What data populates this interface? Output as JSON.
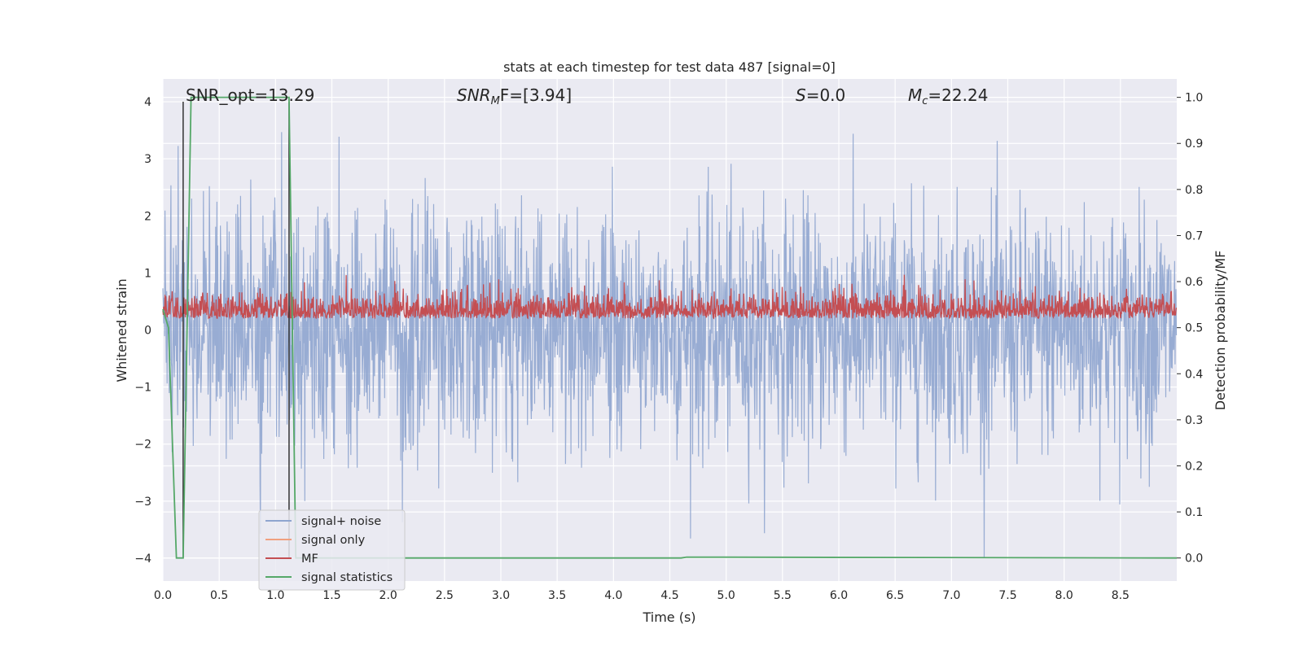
{
  "chart_data": {
    "type": "line",
    "title": "stats at each timestep for test data 487 [signal=0]",
    "xlabel": "Time (s)",
    "ylabel": "Whitened strain",
    "ylabel_right": "Detection probability/MF",
    "xlim": [
      0.0,
      9.0
    ],
    "ylim": [
      -4.4,
      4.4
    ],
    "ylim_right": [
      -0.05,
      1.04
    ],
    "x_ticks": [
      "0.0",
      "0.5",
      "1.0",
      "1.5",
      "2.0",
      "2.5",
      "3.0",
      "3.5",
      "4.0",
      "4.5",
      "5.0",
      "5.5",
      "6.0",
      "6.5",
      "7.0",
      "7.5",
      "8.0",
      "8.5"
    ],
    "y_ticks_left": [
      "−4",
      "−3",
      "−2",
      "−1",
      "0",
      "1",
      "2",
      "3",
      "4"
    ],
    "y_ticks_right": [
      "0.0",
      "0.1",
      "0.2",
      "0.3",
      "0.4",
      "0.5",
      "0.6",
      "0.7",
      "0.8",
      "0.9",
      "1.0"
    ],
    "grid": true,
    "legend_position": "lower-left",
    "annotations": {
      "snr_opt": "SNR_opt=13.29",
      "snr_mf_main": "SNR",
      "snr_mf_sub": "M",
      "snr_mf_tail": "F=[3.94]",
      "s_main": "S",
      "s_tail": "=0.0",
      "mc_main": "M",
      "mc_sub": "c",
      "mc_tail": "=22.24"
    },
    "vertical_lines_x": [
      0.18,
      1.12
    ],
    "series": [
      {
        "name": "signal+ noise",
        "axis": "left",
        "color": "#8fa5cf",
        "description": "whitened strain noise, amplitude roughly ±2.5 with peaks to ±4",
        "envelope_min": -4.0,
        "envelope_max": 4.0
      },
      {
        "name": "signal only",
        "axis": "left",
        "color": "#f0a07f"
      },
      {
        "name": "MF",
        "axis": "right",
        "color": "#c44e52",
        "description": "matched filter output, baseline ~0.5, peaks ~0.6"
      },
      {
        "name": "signal statistics",
        "axis": "right",
        "color": "#55a868",
        "x": [
          0.0,
          0.05,
          0.12,
          0.18,
          0.25,
          1.12,
          1.18,
          1.2,
          4.6,
          4.65,
          9.0
        ],
        "y": [
          0.54,
          0.5,
          0.0,
          0.0,
          1.0,
          1.0,
          0.0,
          0.0,
          0.0,
          0.002,
          0.0
        ]
      }
    ]
  },
  "colors": {
    "axes_bg": "#eaeaf2",
    "grid": "#ffffff",
    "noise": "#8fa5cf",
    "signal": "#f0a07f",
    "mf": "#c44e52",
    "stat": "#55a868",
    "vline": "#333333"
  }
}
